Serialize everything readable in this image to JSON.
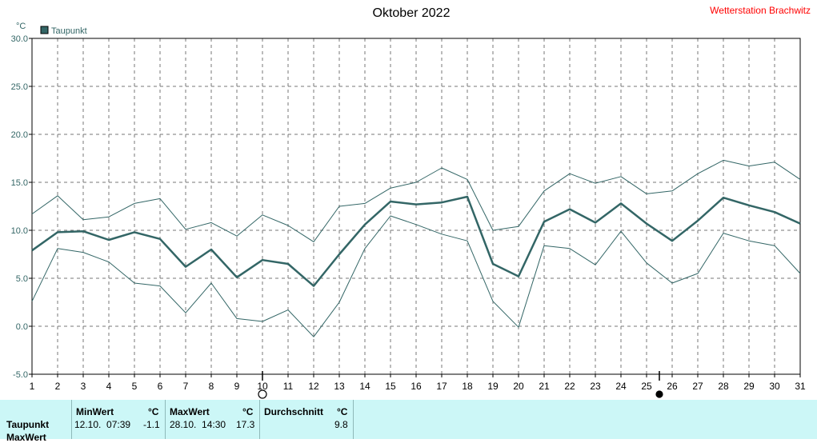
{
  "header": {
    "title": "Oktober 2022",
    "station": "Wetterstation Brachwitz"
  },
  "colors": {
    "series": "#336666",
    "grid": "#777777",
    "station": "#ff0000",
    "footer_bg": "#ccf7f7"
  },
  "chart_data": {
    "type": "line",
    "title": "Oktober 2022",
    "ylabel": "°C",
    "ylim": [
      -5,
      30
    ],
    "yticks": [
      "30.0",
      "25.0",
      "20.0",
      "15.0",
      "10.0",
      "5.0",
      "0.0",
      "-5.0"
    ],
    "yticks_values": [
      30,
      25,
      20,
      15,
      10,
      5,
      0,
      -5
    ],
    "xticks": [
      "1",
      "2",
      "3",
      "4",
      "5",
      "6",
      "7",
      "8",
      "9",
      "10",
      "11",
      "12",
      "13",
      "14",
      "15",
      "16",
      "17",
      "18",
      "19",
      "20",
      "21",
      "22",
      "23",
      "24",
      "25",
      "26",
      "27",
      "28",
      "29",
      "30",
      "31"
    ],
    "grid": true,
    "legend": {
      "position": "top-left",
      "entries": [
        "Taupunkt"
      ]
    },
    "moon_phases": [
      {
        "day": 10,
        "phase": "full-moon"
      },
      {
        "day": 25.5,
        "phase": "new-moon"
      }
    ],
    "series": [
      {
        "name": "Taupunkt",
        "role": "mean",
        "values": [
          7.9,
          9.8,
          9.9,
          9.0,
          9.8,
          9.1,
          6.2,
          8.0,
          5.1,
          6.9,
          6.5,
          4.2,
          7.5,
          10.6,
          13.0,
          12.7,
          12.9,
          13.5,
          6.5,
          5.2,
          10.9,
          12.2,
          10.8,
          12.8,
          10.7,
          8.9,
          11.0,
          13.4,
          12.6,
          11.9,
          10.7
        ]
      },
      {
        "role": "max",
        "values": [
          11.7,
          13.6,
          11.1,
          11.4,
          12.8,
          13.3,
          10.1,
          10.8,
          9.4,
          11.6,
          10.5,
          8.8,
          12.5,
          12.8,
          14.4,
          15.0,
          16.5,
          15.3,
          10.0,
          10.4,
          14.1,
          15.9,
          14.9,
          15.6,
          13.8,
          14.1,
          15.9,
          17.3,
          16.7,
          17.1,
          15.3
        ]
      },
      {
        "role": "min",
        "values": [
          2.6,
          8.1,
          7.7,
          6.7,
          4.5,
          4.2,
          1.4,
          4.5,
          0.8,
          0.5,
          1.7,
          -1.1,
          2.5,
          8.1,
          11.5,
          10.6,
          9.6,
          8.9,
          2.6,
          -0.1,
          8.4,
          8.1,
          6.4,
          9.9,
          6.6,
          4.5,
          5.5,
          9.7,
          8.9,
          8.4,
          5.5
        ]
      }
    ]
  },
  "table": {
    "row_label": "Taupunkt",
    "row_label_2": "MaxWert",
    "min": {
      "header": "MinWert",
      "unit": "°C",
      "datetime": "12.10.  07:39",
      "value": "-1.1"
    },
    "max": {
      "header": "MaxWert",
      "unit": "°C",
      "datetime": "28.10.  14:30",
      "value": "17.3"
    },
    "avg": {
      "header": "Durchschnitt",
      "unit": "°C",
      "value": "9.8"
    }
  }
}
